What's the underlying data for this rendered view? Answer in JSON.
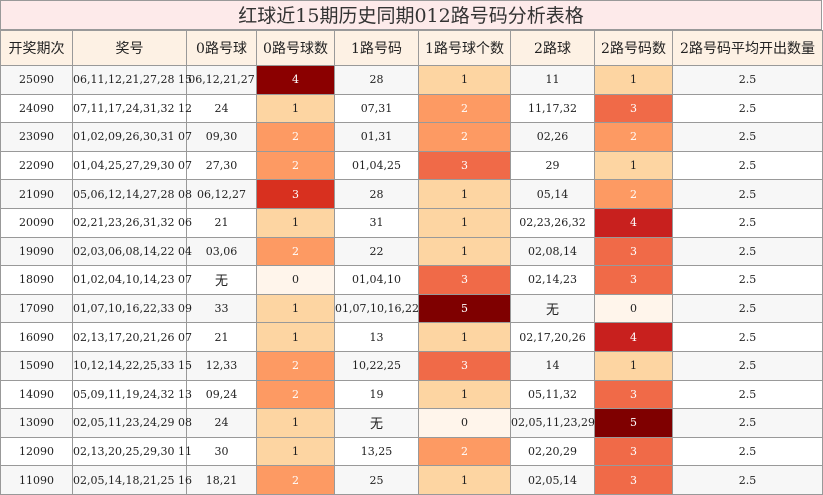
{
  "title": "红球近15期历史同期012路号码分析表格",
  "headers": [
    "开奖期次",
    "奖号",
    "0路号球",
    "0路号球数",
    "1路号码",
    "1路号球个数",
    "2路球",
    "2路号码数",
    "2路号码平均开出数量"
  ],
  "rows": [
    {
      "period": "25090",
      "numbers": "06,11,12,21,27,28 15",
      "r0": "06,12,21,27",
      "c0": "4",
      "r1": "28",
      "c1": "1",
      "r2": "11",
      "c2": "1",
      "avg": "2.5"
    },
    {
      "period": "24090",
      "numbers": "07,11,17,24,31,32 12",
      "r0": "24",
      "c0": "1",
      "r1": "07,31",
      "c1": "2",
      "r2": "11,17,32",
      "c2": "3",
      "avg": "2.5"
    },
    {
      "period": "23090",
      "numbers": "01,02,09,26,30,31 07",
      "r0": "09,30",
      "c0": "2",
      "r1": "01,31",
      "c1": "2",
      "r2": "02,26",
      "c2": "2",
      "avg": "2.5"
    },
    {
      "period": "22090",
      "numbers": "01,04,25,27,29,30 07",
      "r0": "27,30",
      "c0": "2",
      "r1": "01,04,25",
      "c1": "3",
      "r2": "29",
      "c2": "1",
      "avg": "2.5"
    },
    {
      "period": "21090",
      "numbers": "05,06,12,14,27,28 08",
      "r0": "06,12,27",
      "c0": "3",
      "r1": "28",
      "c1": "1",
      "r2": "05,14",
      "c2": "2",
      "avg": "2.5"
    },
    {
      "period": "20090",
      "numbers": "02,21,23,26,31,32 06",
      "r0": "21",
      "c0": "1",
      "r1": "31",
      "c1": "1",
      "r2": "02,23,26,32",
      "c2": "4",
      "avg": "2.5"
    },
    {
      "period": "19090",
      "numbers": "02,03,06,08,14,22 04",
      "r0": "03,06",
      "c0": "2",
      "r1": "22",
      "c1": "1",
      "r2": "02,08,14",
      "c2": "3",
      "avg": "2.5"
    },
    {
      "period": "18090",
      "numbers": "01,02,04,10,14,23 07",
      "r0": "无",
      "c0": "0",
      "r1": "01,04,10",
      "c1": "3",
      "r2": "02,14,23",
      "c2": "3",
      "avg": "2.5"
    },
    {
      "period": "17090",
      "numbers": "01,07,10,16,22,33 09",
      "r0": "33",
      "c0": "1",
      "r1": "01,07,10,16,22",
      "c1": "5",
      "r2": "无",
      "c2": "0",
      "avg": "2.5"
    },
    {
      "period": "16090",
      "numbers": "02,13,17,20,21,26 07",
      "r0": "21",
      "c0": "1",
      "r1": "13",
      "c1": "1",
      "r2": "02,17,20,26",
      "c2": "4",
      "avg": "2.5"
    },
    {
      "period": "15090",
      "numbers": "10,12,14,22,25,33 15",
      "r0": "12,33",
      "c0": "2",
      "r1": "10,22,25",
      "c1": "3",
      "r2": "14",
      "c2": "1",
      "avg": "2.5"
    },
    {
      "period": "14090",
      "numbers": "05,09,11,19,24,32 13",
      "r0": "09,24",
      "c0": "2",
      "r1": "19",
      "c1": "1",
      "r2": "05,11,32",
      "c2": "3",
      "avg": "2.5"
    },
    {
      "period": "13090",
      "numbers": "02,05,11,23,24,29 08",
      "r0": "24",
      "c0": "1",
      "r1": "无",
      "c1": "0",
      "r2": "02,05,11,23,29",
      "c2": "5",
      "avg": "2.5"
    },
    {
      "period": "12090",
      "numbers": "02,13,20,25,29,30 11",
      "r0": "30",
      "c0": "1",
      "r1": "13,25",
      "c1": "2",
      "r2": "02,20,29",
      "c2": "3",
      "avg": "2.5"
    },
    {
      "period": "11090",
      "numbers": "02,05,14,18,21,25 16",
      "r0": "18,21",
      "c0": "2",
      "r1": "25",
      "c1": "1",
      "r2": "02,05,14",
      "c2": "3",
      "avg": "2.5"
    }
  ],
  "heat_colors": {
    "0": "#fff5eb",
    "1": "#fdd5a2",
    "2": "#fd9a63",
    "3": "#f06a48",
    "4": "#c8201e",
    "5": "#7f0000"
  },
  "heat_colors_count0": {
    "3": "#d8301f",
    "4": "#8b0000"
  }
}
